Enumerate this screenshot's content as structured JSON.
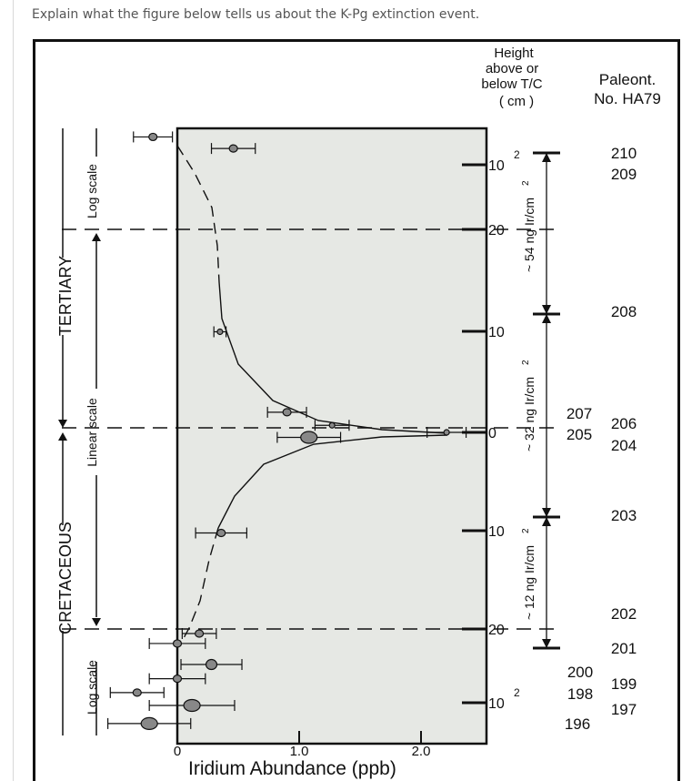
{
  "question": "Explain what the figure below tells us about the K-Pg extinction event.",
  "colors": {
    "plot_bg": "#e6e8e4",
    "ink": "#111111",
    "point_fill": "#888888"
  },
  "chart_data": {
    "type": "scatter",
    "title": "",
    "xlabel": "Iridium Abundance (ppb)",
    "xticks": [
      "0",
      "1.0",
      "2.0"
    ],
    "xlim": [
      0,
      2.5
    ],
    "height_header": [
      "Height",
      "above or",
      "below T/C",
      "( cm )"
    ],
    "height_ticks": [
      {
        "label": "10",
        "sup": "2",
        "zone": "upper-log"
      },
      {
        "label": "20",
        "zone": "upper-linear"
      },
      {
        "label": "10",
        "zone": "upper-linear"
      },
      {
        "label": "0",
        "zone": "boundary"
      },
      {
        "label": "10",
        "zone": "lower-linear"
      },
      {
        "label": "20",
        "zone": "lower-linear"
      },
      {
        "label": "10",
        "sup": "2",
        "zone": "lower-log"
      }
    ],
    "paleo_header": [
      "Paleont.",
      "No. HA79"
    ],
    "paleo_numbers": [
      "210",
      "209",
      "208",
      "207",
      "205",
      "206",
      "204",
      "203",
      "202",
      "201",
      "200",
      "198",
      "199",
      "197",
      "196"
    ],
    "ir_totals": [
      {
        "label": "~ 54 ng Ir/cm",
        "sup": "2"
      },
      {
        "label": "~ 32 ng Ir/cm",
        "sup": "2"
      },
      {
        "label": "~ 12 ng Ir/cm",
        "sup": "2"
      }
    ],
    "period_labels": [
      "TERTIARY",
      "CRETACEOUS"
    ],
    "scale_labels": [
      "Log scale",
      "Linear scale",
      "Log scale"
    ],
    "points": [
      {
        "height_cm": 200,
        "ir": -0.2,
        "err": 0.16,
        "size": "small"
      },
      {
        "height_cm": 150,
        "ir": 0.46,
        "err": 0.18,
        "size": "small"
      },
      {
        "height_cm": 10,
        "ir": 0.35,
        "err": 0.05,
        "size": "tiny"
      },
      {
        "height_cm": 2,
        "ir": 0.9,
        "err": 0.16,
        "size": "small"
      },
      {
        "height_cm": 0.7,
        "ir": 1.27,
        "err": 0.14,
        "size": "tiny"
      },
      {
        "height_cm": 0,
        "ir": 2.21,
        "err": 0.16,
        "size": "tiny"
      },
      {
        "height_cm": -0.5,
        "ir": 1.08,
        "err": 0.26,
        "size": "large"
      },
      {
        "height_cm": -10,
        "ir": 0.36,
        "err": 0.21,
        "size": "small"
      },
      {
        "height_cm": -20,
        "ir": 0.18,
        "err": 0.14,
        "size": "small"
      },
      {
        "height_cm": -25,
        "ir": 0.0,
        "err": 0.23,
        "size": "small"
      },
      {
        "height_cm": -40,
        "ir": 0.28,
        "err": 0.25,
        "size": "medium"
      },
      {
        "height_cm": -55,
        "ir": 0.0,
        "err": 0.23,
        "size": "small"
      },
      {
        "height_cm": -75,
        "ir": -0.33,
        "err": 0.22,
        "size": "small"
      },
      {
        "height_cm": -100,
        "ir": 0.12,
        "err": 0.35,
        "size": "large"
      },
      {
        "height_cm": -150,
        "ir": -0.23,
        "err": 0.34,
        "size": "large"
      }
    ]
  }
}
